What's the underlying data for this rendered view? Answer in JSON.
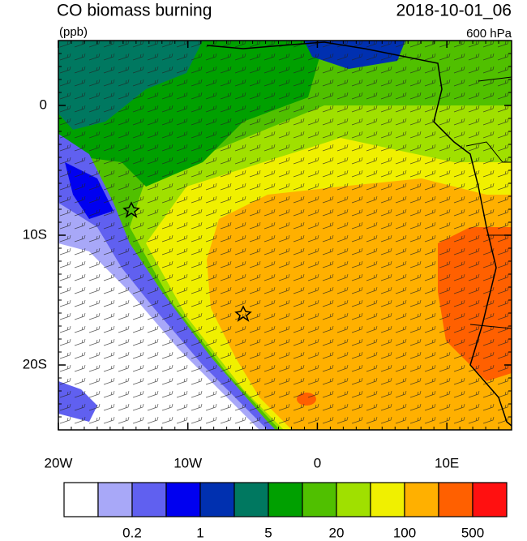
{
  "header": {
    "title": "CO biomass burning",
    "units": "(ppb)",
    "time": "2018-10-01_06",
    "level": "600 hPa"
  },
  "map": {
    "xlim": [
      -20,
      15
    ],
    "ylim": [
      -25,
      5
    ],
    "xticks": [
      {
        "value": -20,
        "label": "20W"
      },
      {
        "value": -10,
        "label": "10W"
      },
      0,
      {
        "value": 10,
        "label": "10E"
      }
    ],
    "yticks": [
      0,
      {
        "value": -10,
        "label": "10S"
      },
      {
        "value": -20,
        "label": "20S"
      }
    ]
  },
  "colorbar": {
    "colors": [
      "#ffffff",
      "#a8a8f8",
      "#6060f0",
      "#0000f0",
      "#0030b0",
      "#007860",
      "#00a000",
      "#50c000",
      "#a0e000",
      "#f0f000",
      "#ffb000",
      "#ff6000",
      "#ff1010"
    ],
    "levels": [
      0.2,
      1,
      5,
      20,
      100,
      500
    ]
  }
}
